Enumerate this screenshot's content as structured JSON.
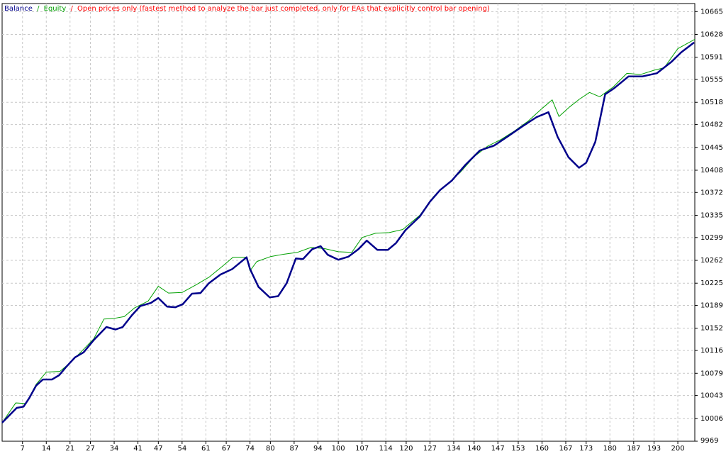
{
  "chart_data": {
    "type": "line",
    "legend_separator": "/",
    "model_note": "Open prices only (fastest method to analyze the bar just completed, only for EAs that explicitly control bar opening)",
    "note_color": "#ff0000",
    "grid": true,
    "xlim": [
      1,
      205
    ],
    "xticks": [
      7,
      14,
      21,
      27,
      34,
      41,
      47,
      54,
      61,
      67,
      74,
      80,
      87,
      94,
      100,
      107,
      114,
      120,
      127,
      134,
      140,
      147,
      153,
      160,
      167,
      173,
      180,
      187,
      193,
      200
    ],
    "ylim": [
      9969,
      10678
    ],
    "yticks": [
      9969,
      10006,
      10043,
      10079,
      10116,
      10152,
      10189,
      10225,
      10262,
      10299,
      10335,
      10372,
      10408,
      10445,
      10482,
      10518,
      10555,
      10591,
      10628,
      10665
    ],
    "series": [
      {
        "name": "Balance",
        "color": "#00008b",
        "x": [
          1,
          5.3,
          7.3,
          9,
          11,
          13,
          15.7,
          17.8,
          19.8,
          22.5,
          25,
          28,
          31.7,
          34.4,
          36.5,
          39.2,
          41.7,
          44.8,
          47,
          49.6,
          52,
          54.2,
          56.9,
          59.4,
          61.9,
          65.3,
          68.8,
          73,
          74,
          76.5,
          79.8,
          82.3,
          84.8,
          87.5,
          89.6,
          92.3,
          94.8,
          96.9,
          100,
          103,
          105.9,
          108.4,
          111.5,
          114.6,
          117,
          119.8,
          124,
          127,
          130,
          133.4,
          137.5,
          141.7,
          145.9,
          150,
          154.2,
          158.4,
          161.9,
          164.6,
          167.8,
          170.9,
          173,
          175.7,
          178.6,
          181.3,
          185.5,
          189.6,
          193.8,
          198,
          201,
          204.8
        ],
        "values": [
          9999,
          10023,
          10025,
          10039,
          10059,
          10069,
          10069,
          10076,
          10089,
          10105,
          10113,
          10133,
          10154,
          10150,
          10154,
          10173,
          10188,
          10193,
          10201,
          10187,
          10186,
          10191,
          10208,
          10209,
          10225,
          10239,
          10248,
          10267,
          10248,
          10219,
          10202,
          10204,
          10225,
          10265,
          10264,
          10280,
          10285,
          10271,
          10263,
          10268,
          10280,
          10294,
          10279,
          10279,
          10290,
          10311,
          10333,
          10357,
          10376,
          10391,
          10417,
          10440,
          10448,
          10463,
          10479,
          10494,
          10502,
          10462,
          10429,
          10412,
          10420,
          10454,
          10531,
          10541,
          10560,
          10560,
          10565,
          10583,
          10599,
          10615
        ]
      },
      {
        "name": "Equity",
        "color": "#00a000",
        "x": [
          1,
          5,
          8,
          11,
          14,
          18,
          21,
          25,
          28,
          31,
          34,
          37,
          40,
          44,
          47,
          50,
          54,
          58,
          62,
          66,
          69,
          73,
          74,
          76,
          80,
          84,
          88,
          92,
          96,
          100,
          104,
          107,
          111,
          115,
          119,
          124,
          128,
          132,
          136,
          140,
          144,
          148,
          152,
          156,
          160,
          163,
          165,
          168,
          171,
          174,
          177,
          181,
          185,
          189,
          193,
          196,
          200,
          205
        ],
        "values": [
          9999,
          10031,
          10030,
          10061,
          10081,
          10082,
          10096,
          10118,
          10135,
          10167,
          10168,
          10171,
          10185,
          10196,
          10220,
          10209,
          10210,
          10222,
          10235,
          10253,
          10267,
          10267,
          10245,
          10260,
          10268,
          10272,
          10275,
          10283,
          10281,
          10276,
          10275,
          10299,
          10306,
          10307,
          10312,
          10335,
          10365,
          10385,
          10405,
          10430,
          10447,
          10458,
          10472,
          10488,
          10508,
          10522,
          10495,
          10510,
          10523,
          10534,
          10527,
          10543,
          10565,
          10563,
          10570,
          10574,
          10605,
          10620
        ]
      }
    ]
  }
}
